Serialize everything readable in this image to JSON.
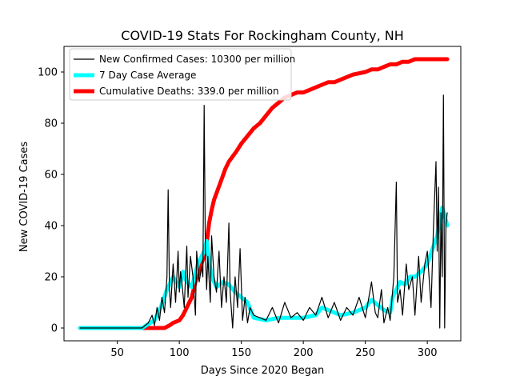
{
  "chart_data": {
    "type": "line",
    "title": "COVID-19 Stats For Rockingham County, NH",
    "xlabel": "Days Since 2020 Began",
    "ylabel": "New COVID-19 Cases",
    "xlim": [
      7,
      327
    ],
    "ylim": [
      -5,
      110
    ],
    "xticks": [
      50,
      100,
      150,
      200,
      250,
      300
    ],
    "yticks": [
      0,
      20,
      40,
      60,
      80,
      100
    ],
    "grid": false,
    "legend_position": "top-left",
    "series": [
      {
        "name": "New Confirmed Cases: 10300 per million",
        "color": "#000000",
        "x": [
          20,
          60,
          70,
          75,
          78,
          80,
          82,
          84,
          86,
          88,
          90,
          91,
          92,
          93,
          95,
          97,
          99,
          100,
          101,
          102,
          104,
          106,
          107,
          109,
          111,
          113,
          114,
          116,
          118,
          119,
          120,
          121,
          122,
          123,
          125,
          126,
          128,
          130,
          132,
          134,
          136,
          138,
          140,
          141,
          143,
          145,
          147,
          149,
          151,
          153,
          155,
          157,
          160,
          165,
          170,
          175,
          180,
          185,
          190,
          195,
          200,
          205,
          210,
          215,
          220,
          225,
          230,
          235,
          240,
          245,
          250,
          255,
          258,
          260,
          263,
          265,
          268,
          270,
          273,
          275,
          276,
          278,
          280,
          283,
          285,
          288,
          290,
          293,
          295,
          298,
          300,
          303,
          305,
          307,
          308,
          309,
          310,
          311,
          312,
          313,
          314,
          315,
          316
        ],
        "y": [
          0,
          0,
          0,
          2,
          5,
          1,
          8,
          3,
          12,
          6,
          20,
          54,
          15,
          8,
          25,
          10,
          30,
          14,
          22,
          18,
          8,
          32,
          12,
          28,
          20,
          5,
          30,
          18,
          24,
          20,
          87,
          30,
          15,
          28,
          10,
          36,
          20,
          14,
          30,
          8,
          20,
          10,
          41,
          14,
          0,
          20,
          8,
          31,
          3,
          12,
          2,
          8,
          5,
          4,
          3,
          8,
          2,
          10,
          4,
          6,
          3,
          8,
          5,
          12,
          4,
          10,
          3,
          8,
          5,
          12,
          4,
          18,
          6,
          4,
          15,
          2,
          8,
          3,
          20,
          57,
          10,
          15,
          5,
          25,
          15,
          20,
          5,
          28,
          10,
          25,
          30,
          8,
          40,
          65,
          30,
          55,
          0,
          45,
          20,
          91,
          0,
          40,
          45
        ]
      },
      {
        "name": "7 Day Case Average",
        "color": "#00ffff",
        "x": [
          20,
          70,
          80,
          85,
          90,
          95,
          100,
          103,
          106,
          110,
          115,
          118,
          120,
          122,
          124,
          126,
          130,
          135,
          140,
          145,
          150,
          155,
          160,
          170,
          180,
          190,
          200,
          210,
          215,
          220,
          230,
          240,
          250,
          255,
          260,
          265,
          270,
          272,
          275,
          278,
          282,
          286,
          290,
          295,
          300,
          305,
          308,
          310,
          312,
          314,
          316
        ],
        "y": [
          0,
          0,
          3,
          8,
          15,
          20,
          16,
          22,
          18,
          16,
          25,
          28,
          30,
          34,
          26,
          20,
          16,
          18,
          17,
          14,
          12,
          10,
          4,
          3,
          4,
          4,
          4,
          5,
          8,
          7,
          5,
          6,
          8,
          11,
          9,
          7,
          6,
          12,
          15,
          18,
          17,
          20,
          20,
          22,
          25,
          32,
          36,
          42,
          47,
          44,
          40
        ]
      },
      {
        "name": "Cumulative Deaths: 339.0 per million",
        "color": "#ff0000",
        "x": [
          20,
          88,
          92,
          95,
          100,
          103,
          106,
          110,
          113,
          117,
          120,
          122,
          124,
          126,
          128,
          131,
          134,
          137,
          140,
          143,
          146,
          150,
          155,
          160,
          165,
          170,
          175,
          180,
          185,
          190,
          195,
          200,
          205,
          210,
          215,
          220,
          225,
          230,
          235,
          240,
          250,
          255,
          260,
          265,
          270,
          275,
          280,
          285,
          290,
          300,
          310,
          316
        ],
        "y": [
          0,
          0,
          1,
          2,
          3,
          5,
          8,
          12,
          18,
          24,
          28,
          33,
          41,
          46,
          50,
          54,
          58,
          62,
          65,
          67,
          69,
          72,
          75,
          78,
          80,
          83,
          86,
          88,
          90,
          91,
          92,
          92,
          93,
          94,
          95,
          96,
          96,
          97,
          98,
          99,
          100,
          101,
          101,
          102,
          103,
          103,
          104,
          104,
          105,
          105,
          105,
          105
        ]
      }
    ]
  }
}
